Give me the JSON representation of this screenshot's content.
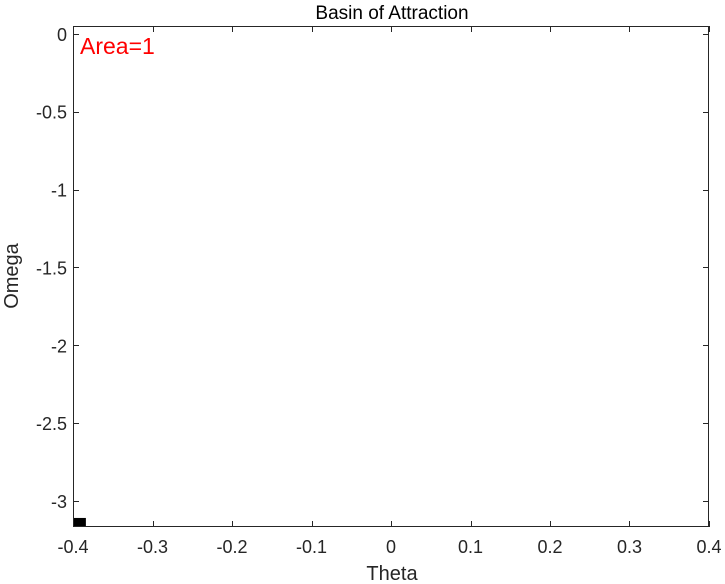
{
  "chart_data": {
    "type": "heatmap",
    "title": "Basin of Attraction",
    "xlabel": "Theta",
    "ylabel": "Omega",
    "xlim": [
      -0.4,
      0.4
    ],
    "ylim": [
      -3.1666,
      0.05
    ],
    "xticks": [
      -0.4,
      -0.3,
      -0.2,
      -0.1,
      0,
      0.1,
      0.2,
      0.3,
      0.4
    ],
    "xtick_labels": [
      "-0.4",
      "-0.3",
      "-0.2",
      "-0.1",
      "0",
      "0.1",
      "0.2",
      "0.3",
      "0.4"
    ],
    "yticks": [
      -3,
      -2.5,
      -2,
      -1.5,
      -1,
      -0.5,
      0
    ],
    "ytick_labels": [
      "-3",
      "-2.5",
      "-2",
      "-1.5",
      "-1",
      "-0.5",
      "0"
    ],
    "cells": [
      {
        "theta_min": -0.4,
        "theta_max": -0.3838,
        "omega_min": -3.1666,
        "omega_max": -3.1085,
        "value": 1
      }
    ],
    "annotation": {
      "text": "Area=1",
      "color": "#ff0000"
    },
    "grid": false,
    "colors": {
      "filled_cell": "#000000",
      "background": "#ffffff",
      "axis": "#262626"
    }
  }
}
